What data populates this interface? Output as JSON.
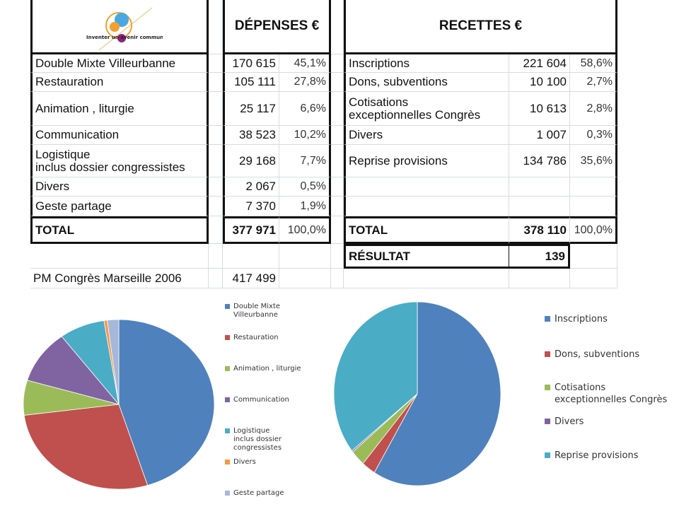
{
  "header": {
    "logo_text": "Inventer un avenir commun",
    "depenses": "DÉPENSES €",
    "recettes": "RECETTES €"
  },
  "rows": [
    {
      "l": "Double Mixte Villeurbanne",
      "lv": "170 615",
      "lp": "45,1%",
      "r": "Inscriptions",
      "rv": "221 604",
      "rp": "58,6%"
    },
    {
      "l": "Restauration",
      "lv": "105 111",
      "lp": "27,8%",
      "r": "Dons, subventions",
      "rv": "10 100",
      "rp": "2,7%"
    },
    {
      "l": "Animation , liturgie",
      "lv": "25 117",
      "lp": "6,6%",
      "r": "Cotisations\nexceptionnelles Congrès",
      "rv": "10 613",
      "rp": "2,8%"
    },
    {
      "l": "Communication",
      "lv": "38 523",
      "lp": "10,2%",
      "r": "Divers",
      "rv": "1 007",
      "rp": "0,3%"
    },
    {
      "l": "Logistique\ninclus dossier congressistes",
      "lv": "29 168",
      "lp": "7,7%",
      "r": "Reprise provisions",
      "rv": "134 786",
      "rp": "35,6%"
    },
    {
      "l": "Divers",
      "lv": "2 067",
      "lp": "0,5%",
      "r": "",
      "rv": "",
      "rp": ""
    },
    {
      "l": "Geste partage",
      "lv": "7 370",
      "lp": "1,9%",
      "r": "",
      "rv": "",
      "rp": ""
    },
    {
      "l": "TOTAL",
      "lv": "377 971",
      "lp": "100,0%",
      "r": "TOTAL",
      "rv": "378 110",
      "rp": "100,0%"
    },
    {
      "l": "",
      "lv": "",
      "lp": "",
      "r": "RÉSULTAT",
      "rv": "139",
      "rp": ""
    },
    {
      "l": "PM Congrès Marseille 2006",
      "lv": "417 499",
      "lp": "",
      "r": "",
      "rv": "",
      "rp": ""
    }
  ],
  "chart_data": [
    {
      "type": "pie",
      "title": "",
      "start": "top",
      "direction": "clockwise",
      "legend": "right",
      "categories": [
        "Double Mixte\nVilleurbanne",
        "Restauration",
        "Animation , liturgie",
        "Communication",
        "Logistique\ninclus dossier\ncongressistes",
        "Divers",
        "Geste partage"
      ],
      "values": [
        170615,
        105111,
        25117,
        38523,
        29168,
        2067,
        7370
      ],
      "colors": [
        "#4f81bd",
        "#c0504d",
        "#9bbb59",
        "#8064a2",
        "#4bacc6",
        "#f79646",
        "#a5b8d9"
      ]
    },
    {
      "type": "pie",
      "title": "",
      "start": "top",
      "direction": "clockwise",
      "legend": "right",
      "categories": [
        "Inscriptions",
        "Dons, subventions",
        "Cotisations\nexceptionnelles Congrès",
        "Divers",
        "Reprise provisions"
      ],
      "values": [
        221604,
        10100,
        10613,
        1007,
        134786
      ],
      "colors": [
        "#4f81bd",
        "#c0504d",
        "#9bbb59",
        "#8064a2",
        "#4bacc6"
      ]
    }
  ]
}
